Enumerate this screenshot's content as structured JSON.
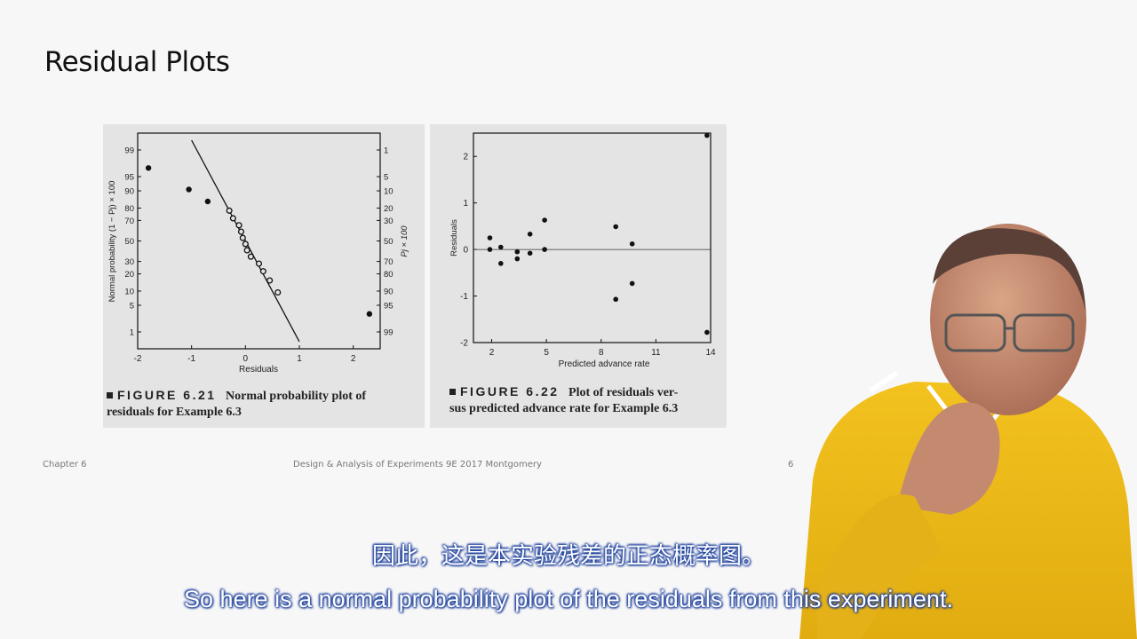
{
  "slide": {
    "title": "Residual Plots",
    "footer_left": "Chapter 6",
    "footer_center": "Design & Analysis of Experiments 9E 2017 Montgomery",
    "footer_right": "6"
  },
  "subtitles": {
    "chinese": "因此，这是本实验残差的正态概率图。",
    "english": "So here is a normal probability plot of the residuals from this experiment."
  },
  "figures": [
    {
      "number": "FIGURE 6.21",
      "caption_line1": "Normal probability plot of",
      "caption_line2": "residuals for Example 6.3"
    },
    {
      "number": "FIGURE 6.22",
      "caption_line1": "Plot of residuals ver-",
      "caption_line2": "sus predicted advance rate for Example 6.3"
    }
  ],
  "chart_data": [
    {
      "type": "scatter",
      "xlabel": "Residuals",
      "ylabel": "Normal probability (1 − Pj) × 100",
      "ylabel_right": "Pj × 100",
      "xlim": [
        -2,
        2.5
      ],
      "x_ticks": [
        -2,
        -1,
        0,
        1,
        2
      ],
      "y_ticks_left": [
        "1",
        "5",
        "10",
        "20",
        "30",
        "50",
        "70",
        "80",
        "90",
        "95",
        "99"
      ],
      "y_ticks_right": [
        "99",
        "95",
        "90",
        "80",
        "70",
        "50",
        "30",
        "20",
        "10",
        "5",
        "1"
      ],
      "probability_levels_left": [
        1,
        5,
        10,
        20,
        30,
        50,
        70,
        80,
        90,
        95,
        99
      ],
      "points": [
        {
          "x": -1.8,
          "p": 96.9
        },
        {
          "x": -1.05,
          "p": 90.6
        },
        {
          "x": -0.7,
          "p": 84.4
        },
        {
          "x": -0.3,
          "p": 78.1
        },
        {
          "x": -0.23,
          "p": 71.9
        },
        {
          "x": -0.12,
          "p": 65.6
        },
        {
          "x": -0.08,
          "p": 59.4
        },
        {
          "x": -0.05,
          "p": 53.1
        },
        {
          "x": 0.0,
          "p": 46.9
        },
        {
          "x": 0.03,
          "p": 40.6
        },
        {
          "x": 0.1,
          "p": 34.4
        },
        {
          "x": 0.25,
          "p": 28.1
        },
        {
          "x": 0.33,
          "p": 21.9
        },
        {
          "x": 0.45,
          "p": 15.6
        },
        {
          "x": 0.6,
          "p": 9.4
        },
        {
          "x": 2.3,
          "p": 3.1
        }
      ],
      "fit_line": [
        {
          "x": -1.0,
          "p": 99.5
        },
        {
          "x": 1.0,
          "p": 0.5
        }
      ]
    },
    {
      "type": "scatter",
      "xlabel": "Predicted advance rate",
      "ylabel": "Residuals",
      "xlim": [
        1,
        14
      ],
      "ylim": [
        -2,
        2.5
      ],
      "x_ticks": [
        2,
        5,
        8,
        11,
        14
      ],
      "y_ticks": [
        -2,
        -1,
        0,
        1,
        2
      ],
      "reference_line_y": 0,
      "points": [
        {
          "x": 1.9,
          "y": 0.25
        },
        {
          "x": 1.9,
          "y": 0.0
        },
        {
          "x": 2.5,
          "y": 0.05
        },
        {
          "x": 2.5,
          "y": -0.3
        },
        {
          "x": 3.4,
          "y": -0.05
        },
        {
          "x": 3.4,
          "y": -0.2
        },
        {
          "x": 4.1,
          "y": 0.33
        },
        {
          "x": 4.1,
          "y": -0.08
        },
        {
          "x": 4.9,
          "y": 0.63
        },
        {
          "x": 4.9,
          "y": 0.0
        },
        {
          "x": 8.8,
          "y": 0.49
        },
        {
          "x": 8.8,
          "y": -1.07
        },
        {
          "x": 9.7,
          "y": 0.12
        },
        {
          "x": 9.7,
          "y": -0.73
        },
        {
          "x": 13.8,
          "y": 2.45
        },
        {
          "x": 13.8,
          "y": -1.78
        }
      ]
    }
  ]
}
